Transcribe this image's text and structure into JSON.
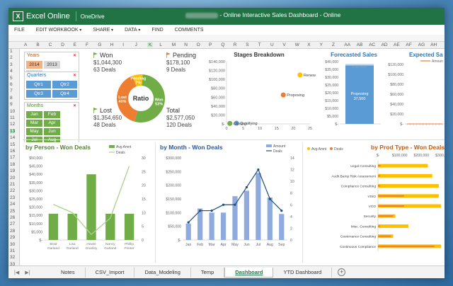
{
  "app": {
    "logo": "X",
    "name": "Excel Online",
    "location": "OneDrive",
    "title_suffix": "- Online Interactive Sales Dashboard - Online"
  },
  "menu": [
    {
      "label": "FILE",
      "caret": ""
    },
    {
      "label": "EDIT WORKBOOK",
      "caret": "▾"
    },
    {
      "label": "SHARE",
      "caret": "▾"
    },
    {
      "label": "DATA",
      "caret": "▾"
    },
    {
      "label": "FIND",
      "caret": ""
    },
    {
      "label": "COMMENTS",
      "caret": ""
    }
  ],
  "columns": [
    "A",
    "B",
    "C",
    "D",
    "E",
    "F",
    "G",
    "H",
    "I",
    "J",
    "K",
    "L",
    "M",
    "N",
    "O",
    "P",
    "Q",
    "R",
    "S",
    "T",
    "U",
    "V",
    "W",
    "X",
    "Y",
    "Z",
    "AA",
    "AB",
    "AC",
    "AD",
    "AE",
    "AF",
    "AG",
    "AH"
  ],
  "selected_column": "K",
  "rows": [
    "1",
    "2",
    "3",
    "4",
    "5",
    "6",
    "7",
    "8",
    "9",
    "10",
    "11",
    "12",
    "13",
    "14",
    "15",
    "16",
    "17",
    "18",
    "19",
    "20",
    "21",
    "22",
    "23",
    "24",
    "25",
    "26",
    "27",
    "28",
    "29",
    "30",
    "31",
    "32",
    "33"
  ],
  "selected_row": "13",
  "slicers": {
    "years": {
      "title": "Years",
      "items": [
        "2014",
        "2013",
        "2012"
      ],
      "selected": "2014"
    },
    "quarters": {
      "title": "Quarters",
      "items": [
        "Qtr1",
        "Qtr2",
        "Qtr3",
        "Qtr4"
      ]
    },
    "months": {
      "title": "Months",
      "items": [
        "Jan",
        "Feb",
        "Mar",
        "Apr",
        "May",
        "Jun",
        "Jul",
        "Aug",
        "Sep",
        "Oct",
        "Nov",
        "Dec"
      ]
    }
  },
  "kpis": {
    "won": {
      "label": "Won",
      "amount": "$1,044,300",
      "deals": "63 Deals",
      "color": "#70ad47"
    },
    "pending": {
      "label": "Pending",
      "amount": "$178,100",
      "deals": "9 Deals",
      "color": "#ed7d31"
    },
    "lost": {
      "label": "Lost",
      "amount": "$1,354,650",
      "deals": "48 Deals",
      "color": "#70ad47"
    },
    "total": {
      "label": "Total",
      "amount": "$2,577,050",
      "deals": "120 Deals",
      "color": "#333333"
    }
  },
  "ratio": {
    "center_label": "Ratio",
    "slices": [
      {
        "name": "Won",
        "pct": "53%",
        "value": 53,
        "color": "#70ad47"
      },
      {
        "name": "Lost",
        "pct": "40%",
        "value": 40,
        "color": "#ed7d31"
      },
      {
        "name": "Pending",
        "pct": "7%",
        "value": 7,
        "color": "#ffc000"
      }
    ]
  },
  "chart_data": [
    {
      "type": "scatter",
      "title": "Stages Breakdown",
      "yticks": [
        "$140,000",
        "$120,000",
        "$100,000",
        "$80,000",
        "$60,000",
        "$40,000",
        "$20,000",
        "$-"
      ],
      "xticks": [
        "0",
        "5",
        "10",
        "15",
        "20",
        "25"
      ],
      "ylim": [
        0,
        140000
      ],
      "xlim": [
        0,
        25
      ],
      "points": [
        {
          "label": "Renewal",
          "x": 22,
          "y": 110000,
          "color": "#ffc000"
        },
        {
          "label": "Proposing",
          "x": 17,
          "y": 65000,
          "color": "#ed7d31"
        },
        {
          "label": "Qualifying",
          "x": 3,
          "y": 1500,
          "color": "#5b9bd5"
        },
        {
          "label": "Closing",
          "x": 1,
          "y": 1000,
          "color": "#70ad47"
        }
      ]
    },
    {
      "type": "bar",
      "title": "Forecasted Sales",
      "yticks": [
        "$40,000",
        "$35,000",
        "$30,000",
        "$25,000",
        "$20,000",
        "$15,000",
        "$10,000",
        "$5,000",
        "$-"
      ],
      "ylim": [
        0,
        40000
      ],
      "stack": [
        {
          "label": "Proposing",
          "value": 37500,
          "value_label": "37,500",
          "color": "#5b9bd5"
        },
        {
          "label": "Challenger",
          "value": 1000,
          "value_label": "",
          "color": "#bdd7ee"
        }
      ]
    },
    {
      "type": "line",
      "title": "Expected Sa",
      "legend": "Amoun",
      "yticks": [
        "$120,000",
        "$100,000",
        "$80,000",
        "$60,000",
        "$40,000",
        "$20,000",
        "$-"
      ],
      "ylim": [
        0,
        120000
      ],
      "values": [
        0,
        0,
        0,
        0,
        0,
        0,
        0,
        0,
        0,
        0,
        0,
        0
      ]
    },
    {
      "type": "bar",
      "title": "by Person - Won Deals",
      "legend": [
        "Avg Amnt",
        "Deals"
      ],
      "yticks": [
        "$50,000",
        "$45,000",
        "$40,000",
        "$35,000",
        "$30,000",
        "$25,000",
        "$20,000",
        "$15,000",
        "$10,000",
        "$5,000",
        "$-"
      ],
      "y2ticks": [
        "30",
        "25",
        "20",
        "15",
        "10",
        "5",
        "0"
      ],
      "ylim": [
        0,
        50000
      ],
      "y2lim": [
        0,
        30
      ],
      "categories": [
        "Brad\nGarland",
        "Lisa\nGarland",
        "Howie\nGranley",
        "Nancy\nGarland",
        "Phillip\nPrinter"
      ],
      "categories_display": [
        "Brad Garland",
        "Lisa Garland",
        "Howie Granley",
        "Nancy Garland",
        "Phillip Printer"
      ],
      "bars": [
        16000,
        16000,
        40000,
        16000,
        16000
      ],
      "line": [
        13,
        10,
        2,
        8,
        27
      ],
      "bar_color": "#70ad47",
      "line_color": "#a9d18e"
    },
    {
      "type": "bar",
      "title": "by Month - Won Deals",
      "legend": [
        "Amount",
        "Deals"
      ],
      "yticks": [
        "$300,000",
        "$250,000",
        "$200,000",
        "$150,000",
        "$100,000",
        "$50,000",
        "$-"
      ],
      "y2ticks": [
        "14",
        "12",
        "10",
        "8",
        "6",
        "4",
        "2",
        "0"
      ],
      "ylim": [
        0,
        300000
      ],
      "y2lim": [
        0,
        14
      ],
      "categories": [
        "Jan",
        "Feb",
        "Mar",
        "Apr",
        "May",
        "Jun",
        "Jul",
        "Aug",
        "Sep"
      ],
      "bars": [
        60000,
        115000,
        100000,
        100000,
        160000,
        180000,
        245000,
        155000,
        95000
      ],
      "line": [
        3,
        5,
        5,
        6,
        6,
        9,
        12,
        7,
        5
      ],
      "bar_color": "#8faadc",
      "line_color": "#1f4e79"
    },
    {
      "type": "bar",
      "title": "by Prod Type - Won Deals",
      "orientation": "horizontal",
      "legend": [
        "Avg Amnt",
        "Deals"
      ],
      "xticks": [
        "$-",
        "$100,000",
        "$200,000",
        "$300,000"
      ],
      "xlim": [
        0,
        300000
      ],
      "categories": [
        "Legal Consulting",
        "Audit Bamp Risk Assessment",
        "Compliance Consulting",
        "VISO",
        "VCO",
        "Security",
        "Misc. Consulting",
        "Governance Consulting",
        "Continuous Compliance"
      ],
      "avg": [
        230000,
        250000,
        280000,
        280000,
        290000,
        80000,
        140000,
        70000,
        290000
      ],
      "deals": [
        12000,
        10000,
        10000,
        120000,
        120000,
        70000,
        10000,
        60000,
        260000
      ],
      "avg_color": "#ffc000",
      "deals_color": "#ed7d31"
    }
  ],
  "tabs": [
    "Notes",
    "CSV_Import",
    "Data_Modeling",
    "Temp",
    "Dashboard",
    "YTD Dashboard"
  ],
  "active_tab": "Dashboard",
  "add_sheet": "+"
}
